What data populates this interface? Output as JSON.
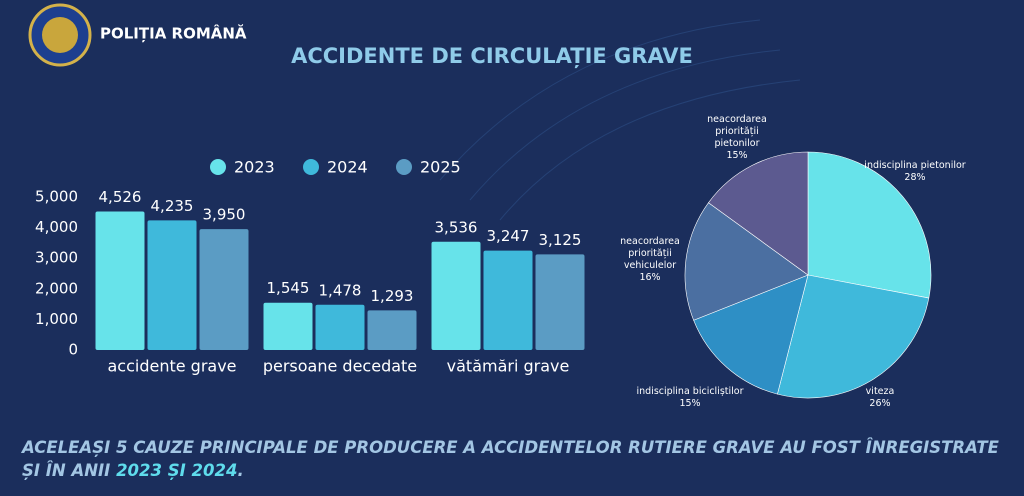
{
  "header": {
    "brand": "POLIȚIA ROMÂNĂ",
    "title": "ACCIDENTE DE CIRCULAȚIE GRAVE"
  },
  "chart_data": [
    {
      "type": "bar",
      "categories": [
        "accidente grave",
        "persoane decedate",
        "vătămări grave"
      ],
      "series": [
        {
          "name": "2023",
          "color": "#67e3ea",
          "values": [
            4526,
            1545,
            3536
          ],
          "value_labels": [
            "4,526",
            "1,545",
            "3,536"
          ]
        },
        {
          "name": "2024",
          "color": "#3fb9db",
          "values": [
            4235,
            1478,
            3247
          ],
          "value_labels": [
            "4,235",
            "1,478",
            "3,247"
          ]
        },
        {
          "name": "2025",
          "color": "#5b9cc4",
          "values": [
            3950,
            1293,
            3125
          ],
          "value_labels": [
            "3,950",
            "1,293",
            "3,125"
          ]
        }
      ],
      "ylim": [
        0,
        5000
      ],
      "yticks": [
        0,
        {
          "value": 1000,
          "label": "1,000"
        },
        {
          "value": 2000,
          "label": "2,000"
        },
        {
          "value": 3000,
          "label": "3,000"
        },
        {
          "value": 4000,
          "label": "4,000"
        },
        {
          "value": 5000,
          "label": "5,000"
        }
      ],
      "grid": false
    },
    {
      "type": "pie",
      "labels": [
        "indisciplina pietonilor",
        "viteza",
        "indisciplina bicicliștilor",
        "neacordarea priorității vehiculelor",
        "neacordarea priorității pietonilor"
      ],
      "values": [
        28,
        26,
        15,
        16,
        15
      ],
      "value_labels": [
        "28%",
        "26%",
        "15%",
        "16%",
        "15%"
      ],
      "colors": [
        "#67e3ea",
        "#3fb9db",
        "#2e8fc5",
        "#4b6fa1",
        "#5c5a90"
      ]
    }
  ],
  "footer": {
    "text": "ACELEAȘI 5 CAUZE PRINCIPALE DE PRODUCERE A ACCIDENTELOR RUTIERE GRAVE AU FOST ÎNREGISTRATE ȘI ÎN ANII",
    "highlight": "2023 ȘI 2024",
    "end": "."
  }
}
